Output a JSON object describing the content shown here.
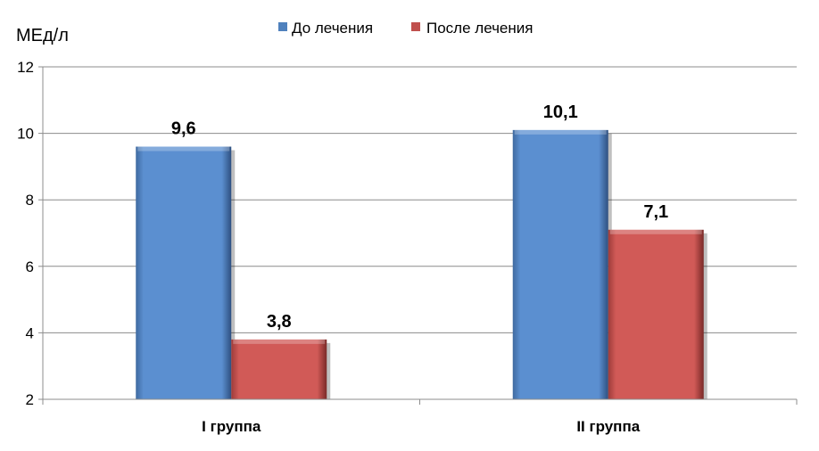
{
  "chart_data": {
    "type": "bar",
    "ylabel": "МЕд/л",
    "categories": [
      "I группа",
      "II группа"
    ],
    "ylim": [
      2,
      12
    ],
    "yticks": [
      2,
      4,
      6,
      8,
      10,
      12
    ],
    "grid": true,
    "legend_position": "top",
    "series": [
      {
        "name": "До лечения",
        "values": [
          9.6,
          10.1
        ],
        "labels": [
          "9,6",
          "10,1"
        ],
        "color": "#4F81BD"
      },
      {
        "name": "После лечения",
        "values": [
          3.8,
          7.1
        ],
        "labels": [
          "3,8",
          "7,1"
        ],
        "color": "#C0504D"
      }
    ]
  }
}
